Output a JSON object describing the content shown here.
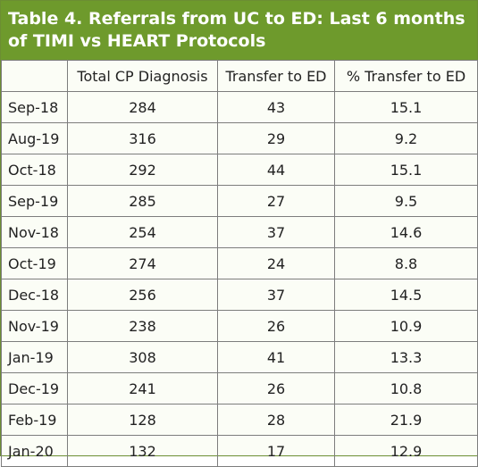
{
  "title": "Table 4. Referrals from UC to ED: Last 6 months of TIMI vs HEART Protocols",
  "columns": [
    "",
    "Total CP Diagnosis",
    "Transfer to ED",
    "% Transfer to ED"
  ],
  "rows": [
    {
      "month": "Sep-18",
      "total": "284",
      "transfer": "43",
      "pct": "15.1"
    },
    {
      "month": "Aug-19",
      "total": "316",
      "transfer": "29",
      "pct": "9.2"
    },
    {
      "month": "Oct-18",
      "total": "292",
      "transfer": "44",
      "pct": "15.1"
    },
    {
      "month": "Sep-19",
      "total": "285",
      "transfer": "27",
      "pct": "9.5"
    },
    {
      "month": "Nov-18",
      "total": "254",
      "transfer": "37",
      "pct": "14.6"
    },
    {
      "month": "Oct-19",
      "total": "274",
      "transfer": "24",
      "pct": "8.8"
    },
    {
      "month": "Dec-18",
      "total": "256",
      "transfer": "37",
      "pct": "14.5"
    },
    {
      "month": "Nov-19",
      "total": "238",
      "transfer": "26",
      "pct": "10.9"
    },
    {
      "month": "Jan-19",
      "total": "308",
      "transfer": "41",
      "pct": "13.3"
    },
    {
      "month": "Dec-19",
      "total": "241",
      "transfer": "26",
      "pct": "10.8"
    },
    {
      "month": "Feb-19",
      "total": "128",
      "transfer": "28",
      "pct": "21.9"
    },
    {
      "month": "Jan-20",
      "total": "132",
      "transfer": "17",
      "pct": "12.9"
    }
  ],
  "colors": {
    "title_background": "#6e9a2c",
    "title_text": "#ffffff",
    "border": "#7d7d7d"
  }
}
